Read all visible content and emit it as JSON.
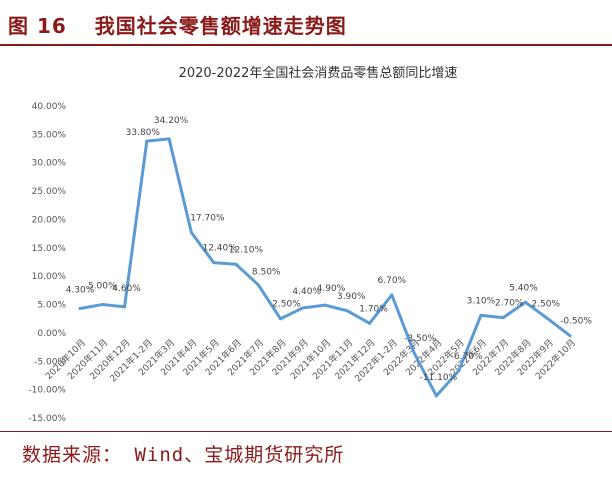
{
  "figure": {
    "number": "图 16",
    "title": "我国社会零售额增速走势图",
    "source": "数据来源： Wind、宝城期货研究所",
    "accent_color": "#8b1a1a"
  },
  "chart_data": {
    "type": "line",
    "title": "2020-2022年全国社会消费品零售总额同比增速",
    "xlabel": "",
    "ylabel": "",
    "ylim": [
      -15,
      40
    ],
    "y_ticks": [
      "40.00%",
      "35.00%",
      "30.00%",
      "25.00%",
      "20.00%",
      "15.00%",
      "10.00%",
      "5.00%",
      "0.00%",
      "-5.00%",
      "-10.00%",
      "-15.00%"
    ],
    "grid": false,
    "line_color": "#5b9bd5",
    "categories": [
      "2020年10月",
      "2020年11月",
      "2020年12月",
      "2021年1-2月",
      "2021年3月",
      "2021年4月",
      "2021年5月",
      "2021年6月",
      "2021年7月",
      "2021年8月",
      "2021年9月",
      "2021年10月",
      "2021年11月",
      "2021年12月",
      "2022年1-2月",
      "2022年3月",
      "2022年4月",
      "2022年5月",
      "2022年6月",
      "2022年7月",
      "2022年8月",
      "2022年9月",
      "2022年10月"
    ],
    "series": [
      {
        "values": [
          4.3,
          5.0,
          4.6,
          33.8,
          34.2,
          17.7,
          12.4,
          12.1,
          8.5,
          2.5,
          4.4,
          4.9,
          3.9,
          1.7,
          6.7,
          -3.5,
          -11.1,
          -6.7,
          3.1,
          2.7,
          5.4,
          2.5,
          -0.5
        ],
        "labels": [
          "4.30%",
          "5.00%",
          "4.60%",
          "33.80%",
          "34.20%",
          "17.70%",
          "12.40%",
          "12.10%",
          "8.50%",
          "2.50%",
          "4.40%",
          "4.90%",
          "3.90%",
          "1.70%",
          "6.70%",
          "-3.50%",
          "-11.10%",
          "-6.70%",
          "3.10%",
          "2.70%",
          "5.40%",
          "2.50%",
          "-0.50%"
        ]
      }
    ]
  }
}
